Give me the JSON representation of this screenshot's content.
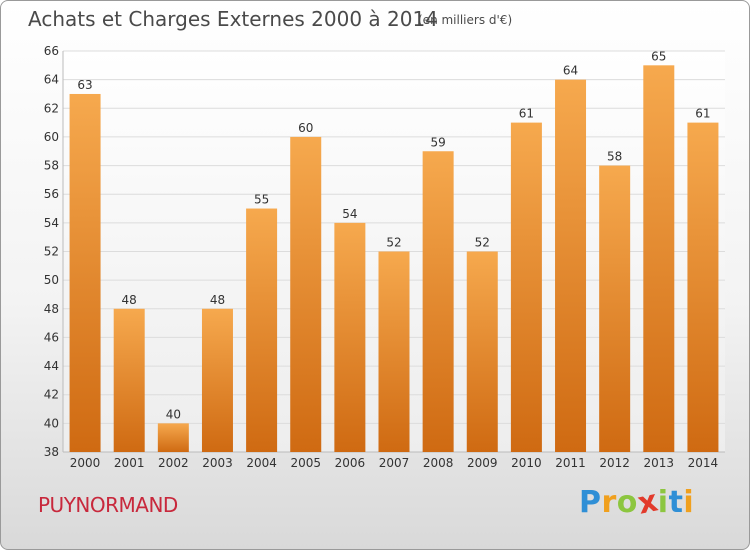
{
  "title": "Achats et Charges Externes 2000 à 2014",
  "unit": "(en milliers d'€)",
  "place": "PUYNORMAND",
  "logo": {
    "name": "Proxiti",
    "colors": [
      "#2f8fd6",
      "#f0a01e",
      "#8cc63f",
      "#e23a2b",
      "#8cc63f",
      "#2f8fd6",
      "#f0a01e"
    ]
  },
  "colors": {
    "bar_light": "#f6a94e",
    "bar_dark": "#cf6a12",
    "grid": "#dcdcdc",
    "axis_text": "#333333"
  },
  "chart_data": {
    "type": "bar",
    "title": "Achats et Charges Externes 2000 à 2014",
    "categories": [
      "2000",
      "2001",
      "2002",
      "2003",
      "2004",
      "2005",
      "2006",
      "2007",
      "2008",
      "2009",
      "2010",
      "2011",
      "2012",
      "2013",
      "2014"
    ],
    "values": [
      63,
      48,
      40,
      48,
      55,
      60,
      54,
      52,
      59,
      52,
      61,
      64,
      58,
      65,
      61
    ],
    "ylim": [
      38,
      66
    ],
    "yticks": [
      38,
      40,
      42,
      44,
      46,
      48,
      50,
      52,
      54,
      56,
      58,
      60,
      62,
      64,
      66
    ],
    "grid": true,
    "data_labels": true
  }
}
